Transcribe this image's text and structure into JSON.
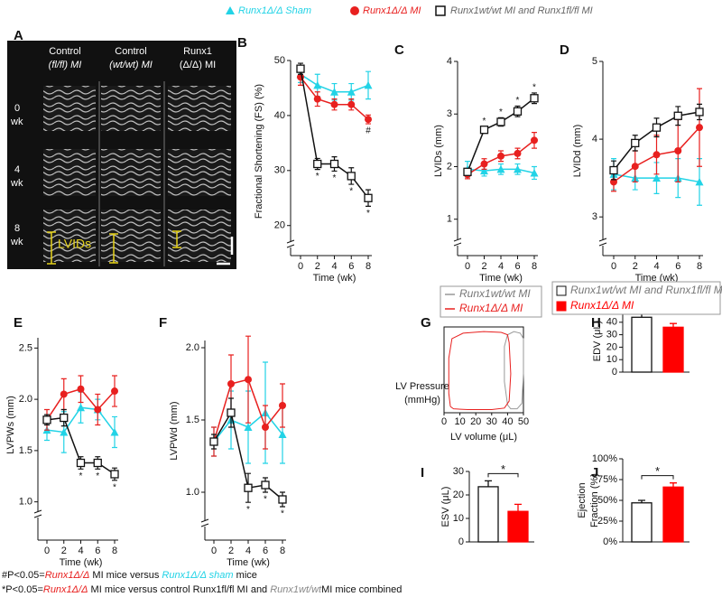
{
  "image_panel": {
    "panel": "A",
    "columns": [
      [
        "Control",
        "(fl/fl) MI"
      ],
      [
        "Control",
        "(wt/wt) MI"
      ],
      [
        "Runx1",
        "(Δ/Δ) MI"
      ]
    ],
    "rows": [
      [
        "0",
        "wk"
      ],
      [
        "4",
        "wk"
      ],
      [
        "8",
        "wk"
      ]
    ],
    "measure": "LVIDs"
  },
  "footnotes": [
    [
      "#P<0.05=",
      "Runx1Δ/Δ",
      " MI mice versus ",
      "Runx1Δ/Δ sham",
      " mice"
    ],
    [
      "*P<0.05=",
      "Runx1Δ/Δ",
      " MI mice versus control Runx1fl/fl MI and ",
      "Runx1wt/wt",
      "MI mice combined"
    ]
  ],
  "chart_data": [
    {
      "type": "line",
      "panel": "B",
      "ylabel": "Fractional Shortening (FS) (%)",
      "xlabel": "Time (wk)",
      "x": [
        0,
        2,
        4,
        6,
        8
      ],
      "xlim": [
        0,
        8
      ],
      "xticks": [
        0,
        2,
        4,
        6,
        8
      ],
      "ylim": [
        17,
        50
      ],
      "yticks": [
        20,
        30,
        40,
        50
      ],
      "series": [
        {
          "name": "Runx1Δ/Δ Sham",
          "color": "#22d3e6",
          "marker": "triangle",
          "values": [
            47.5,
            45.5,
            44.3,
            44.3,
            45.5
          ],
          "errors": [
            1.5,
            2,
            1.5,
            1.5,
            2.5
          ]
        },
        {
          "name": "Runx1Δ/Δ MI",
          "color": "#e8201f",
          "marker": "circle",
          "values": [
            47,
            43,
            42,
            42,
            39.3
          ],
          "errors": [
            1.5,
            1.3,
            1,
            1,
            0.8
          ],
          "annotations": [
            null,
            null,
            null,
            null,
            "#"
          ],
          "annotation_position": "below"
        },
        {
          "name": "Runx1wt/wt MI and Runx1fl/fl MI",
          "color": "#111111",
          "marker": "square",
          "values": [
            48.5,
            31.2,
            31.2,
            29,
            25
          ],
          "errors": [
            1,
            1,
            1.3,
            1.5,
            1.5
          ],
          "annotations": [
            null,
            "*",
            "*",
            "*",
            "*"
          ],
          "annotation_position": "below"
        }
      ]
    },
    {
      "type": "line",
      "panel": "C",
      "ylabel": "LVIDs (mm)",
      "xlabel": "Time (wk)",
      "x": [
        0,
        2,
        4,
        6,
        8
      ],
      "xlim": [
        0,
        8
      ],
      "xticks": [
        0,
        2,
        4,
        6,
        8
      ],
      "ylim": [
        0.6,
        4
      ],
      "yticks": [
        1,
        2,
        3,
        4
      ],
      "series": [
        {
          "color": "#22d3e6",
          "marker": "triangle",
          "values": [
            1.95,
            1.92,
            1.95,
            1.95,
            1.88
          ],
          "errors": [
            0.15,
            0.1,
            0.1,
            0.1,
            0.12
          ]
        },
        {
          "color": "#e8201f",
          "marker": "circle",
          "values": [
            1.85,
            2.05,
            2.2,
            2.25,
            2.5
          ],
          "errors": [
            0.08,
            0.1,
            0.1,
            0.1,
            0.15
          ]
        },
        {
          "color": "#111111",
          "marker": "square",
          "values": [
            1.9,
            2.7,
            2.85,
            3.05,
            3.3
          ],
          "errors": [
            0.06,
            0.06,
            0.08,
            0.1,
            0.1
          ],
          "annotations": [
            null,
            "*",
            "*",
            "*",
            "*"
          ],
          "annotation_position": "above"
        }
      ]
    },
    {
      "type": "line",
      "panel": "D",
      "ylabel": "LVIDd (mm)",
      "xlabel": "Time (wk)",
      "x": [
        0,
        2,
        4,
        6,
        8
      ],
      "xlim": [
        0,
        8
      ],
      "xticks": [
        0,
        2,
        4,
        6,
        8
      ],
      "ylim": [
        2.7,
        5
      ],
      "yticks": [
        3,
        4,
        5
      ],
      "series": [
        {
          "color": "#22d3e6",
          "marker": "triangle",
          "values": [
            3.55,
            3.5,
            3.5,
            3.5,
            3.45
          ],
          "errors": [
            0.2,
            0.15,
            0.2,
            0.25,
            0.3
          ]
        },
        {
          "color": "#e8201f",
          "marker": "circle",
          "values": [
            3.45,
            3.65,
            3.8,
            3.85,
            4.15
          ],
          "errors": [
            0.12,
            0.2,
            0.25,
            0.4,
            0.5
          ]
        },
        {
          "color": "#111111",
          "marker": "square",
          "values": [
            3.6,
            3.95,
            4.15,
            4.3,
            4.35
          ],
          "errors": [
            0.12,
            0.1,
            0.12,
            0.12,
            0.1
          ]
        }
      ]
    },
    {
      "type": "line",
      "panel": "E",
      "ylabel": "LVPWs (mm)",
      "xlabel": "Time (wk)",
      "x": [
        0,
        2,
        4,
        6,
        8
      ],
      "xlim": [
        0,
        8
      ],
      "xticks": [
        0,
        2,
        4,
        6,
        8
      ],
      "ylim": [
        0.9,
        2.6
      ],
      "yticks": [
        {
          "value": 1,
          "label": "1.0"
        },
        1.5,
        {
          "value": 2,
          "label": "2.0"
        },
        2.5
      ],
      "series": [
        {
          "color": "#22d3e6",
          "marker": "triangle",
          "values": [
            1.7,
            1.68,
            1.92,
            1.9,
            1.68
          ],
          "errors": [
            0.1,
            0.2,
            0.15,
            0.1,
            0.15
          ]
        },
        {
          "color": "#e8201f",
          "marker": "circle",
          "values": [
            1.8,
            2.05,
            2.1,
            1.9,
            2.08
          ],
          "errors": [
            0.1,
            0.15,
            0.13,
            0.15,
            0.15
          ]
        },
        {
          "color": "#111111",
          "marker": "square",
          "values": [
            1.8,
            1.82,
            1.38,
            1.38,
            1.27
          ],
          "errors": [
            0.05,
            0.08,
            0.06,
            0.06,
            0.06
          ],
          "annotations": [
            null,
            null,
            "*",
            "*",
            "*"
          ],
          "annotation_position": "below"
        }
      ]
    },
    {
      "type": "line",
      "panel": "F",
      "ylabel": "LVPWd (mm)",
      "xlabel": "Time (wk)",
      "x": [
        0,
        2,
        4,
        6,
        8
      ],
      "xlim": [
        0,
        8
      ],
      "xticks": [
        0,
        2,
        4,
        6,
        8
      ],
      "ylim": [
        0.8,
        2.05
      ],
      "yticks": [
        {
          "value": 1,
          "label": "1.0"
        },
        1.5,
        {
          "value": 2,
          "label": "2.0"
        }
      ],
      "series": [
        {
          "color": "#22d3e6",
          "marker": "triangle",
          "values": [
            1.35,
            1.5,
            1.45,
            1.55,
            1.4
          ],
          "errors": [
            0.1,
            0.2,
            0.25,
            0.35,
            0.2
          ]
        },
        {
          "color": "#e8201f",
          "marker": "circle",
          "values": [
            1.35,
            1.75,
            1.78,
            1.45,
            1.6
          ],
          "errors": [
            0.1,
            0.2,
            0.3,
            0.15,
            0.15
          ]
        },
        {
          "color": "#111111",
          "marker": "square",
          "values": [
            1.35,
            1.55,
            1.03,
            1.05,
            0.95
          ],
          "errors": [
            0.05,
            0.1,
            0.1,
            0.05,
            0.05
          ],
          "annotations": [
            null,
            null,
            "*",
            "*",
            "*"
          ],
          "annotation_position": "below"
        }
      ]
    },
    {
      "type": "loop",
      "panel": "G",
      "ylabel": [
        "LV Pressure",
        "(mmHg)"
      ],
      "xlabel": "LV volume (μL)",
      "xlim": [
        0,
        50
      ],
      "xticks": [
        0,
        10,
        20,
        30,
        40,
        50
      ],
      "ylim": [
        0,
        110
      ],
      "series": [
        {
          "name": "Runx1wt/wt MI",
          "color": "#999999",
          "x": [
            40,
            38,
            38,
            40,
            44,
            48,
            50,
            50,
            49,
            46,
            42,
            40
          ],
          "y": [
            10,
            40,
            85,
            100,
            104,
            102,
            95,
            50,
            12,
            5,
            5,
            10
          ]
        },
        {
          "name": "Runx1Δ/Δ MI",
          "color": "#e8201f",
          "x": [
            4,
            3,
            3,
            5,
            12,
            25,
            36,
            40,
            41,
            42,
            41,
            38,
            30,
            15,
            6,
            4
          ],
          "y": [
            8,
            25,
            70,
            95,
            102,
            104,
            103,
            100,
            90,
            50,
            15,
            6,
            4,
            4,
            5,
            8
          ]
        }
      ]
    },
    {
      "type": "bar",
      "panel": "H",
      "ylabel": "EDV (μL)",
      "ylim": [
        0,
        50
      ],
      "yticks": [
        0,
        10,
        20,
        30,
        40,
        50
      ],
      "significance": "*",
      "series": [
        {
          "name": "Runx1wt/wt MI and Runx1fl/fl MI",
          "color": "#ffffff",
          "values": [
            44
          ],
          "errors": [
            2.5
          ]
        },
        {
          "name": "Runx1Δ/Δ MI",
          "color": "#ff0000",
          "values": [
            36
          ],
          "errors": [
            3
          ]
        }
      ]
    },
    {
      "type": "bar",
      "panel": "I",
      "ylabel": "ESV (μL)",
      "ylim": [
        0,
        30
      ],
      "yticks": [
        0,
        10,
        20,
        30
      ],
      "significance": "*",
      "series": [
        {
          "color": "#ffffff",
          "values": [
            23.5
          ],
          "errors": [
            2.5
          ]
        },
        {
          "color": "#ff0000",
          "values": [
            13
          ],
          "errors": [
            3
          ]
        }
      ]
    },
    {
      "type": "bar",
      "panel": "J",
      "ylabel": [
        "Ejection",
        "Fraction (%)"
      ],
      "ylim": [
        0,
        100
      ],
      "yticks": [
        {
          "value": 0,
          "label": "0%"
        },
        {
          "value": 25,
          "label": "25%"
        },
        {
          "value": 50,
          "label": "50%"
        },
        {
          "value": 75,
          "label": "75%"
        },
        {
          "value": 100,
          "label": "100%"
        }
      ],
      "significance": "*",
      "series": [
        {
          "color": "#ffffff",
          "values": [
            47
          ],
          "errors": [
            3
          ]
        },
        {
          "color": "#ff0000",
          "values": [
            66
          ],
          "errors": [
            5
          ]
        }
      ]
    }
  ]
}
